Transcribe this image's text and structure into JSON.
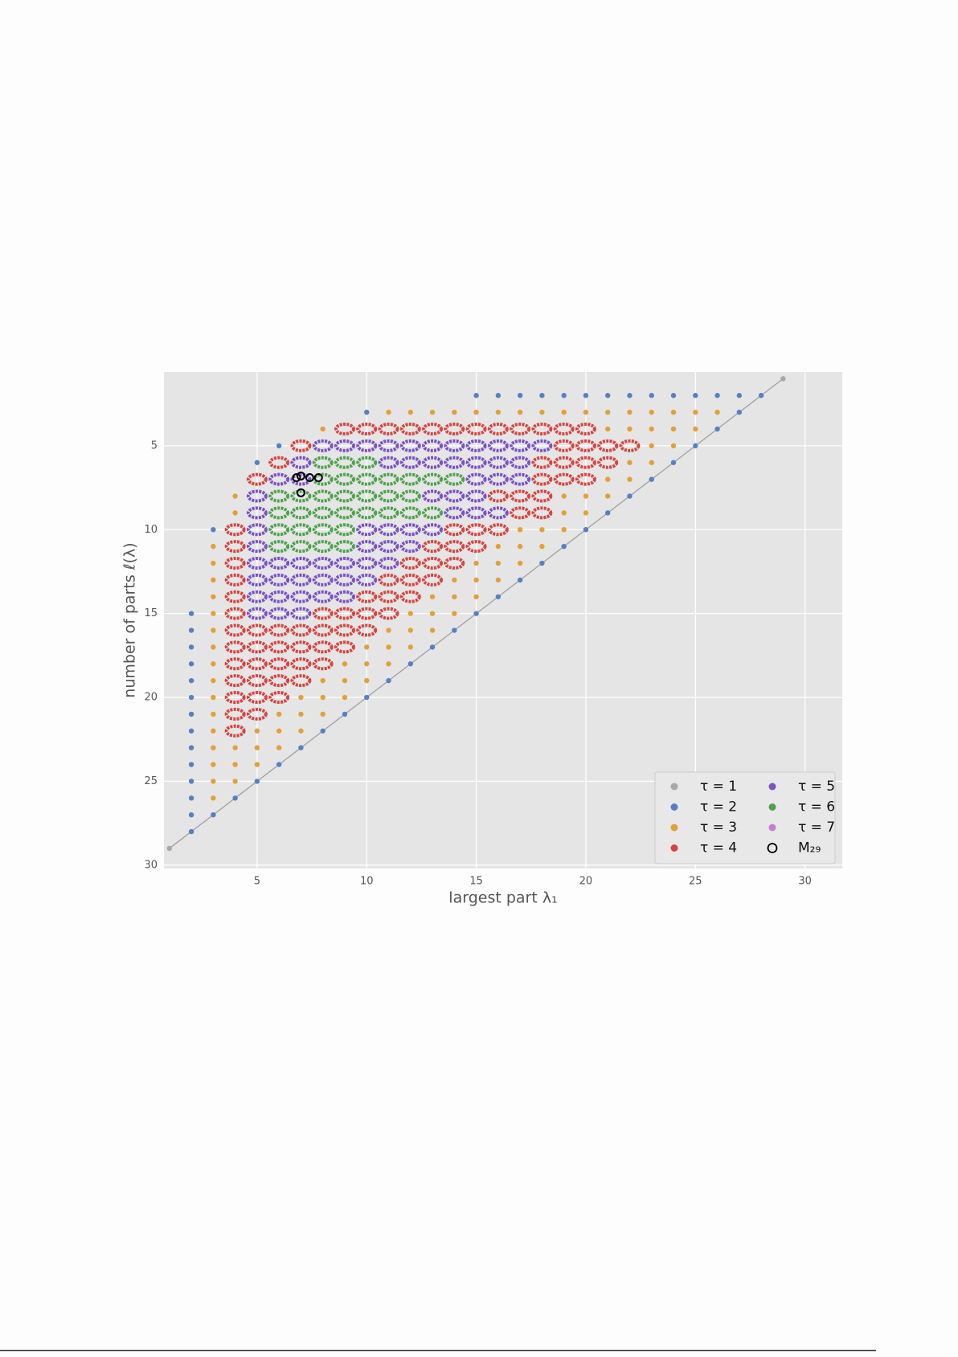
{
  "chart_data": {
    "type": "scatter",
    "xlabel": "largest part λ₁",
    "ylabel": "number of parts ℓ(λ)",
    "xlim": [
      0.75,
      31.7
    ],
    "ylim": [
      30.2,
      0.6
    ],
    "xticks": [
      5,
      10,
      15,
      20,
      25,
      30
    ],
    "yticks": [
      5,
      10,
      15,
      20,
      25,
      30
    ],
    "grid": true,
    "legend": "lower right",
    "series": [
      {
        "name": "τ = 1",
        "color": "#a8a8a8",
        "marker": "dot",
        "x": [
          29,
          1
        ],
        "y": [
          1,
          29
        ]
      },
      {
        "name": "τ = 2",
        "color": "#5580c4",
        "marker": "dot",
        "x": [
          15,
          16,
          17,
          18,
          19,
          20,
          21,
          22,
          23,
          24,
          25,
          26,
          27,
          28,
          10,
          27,
          26,
          6,
          25,
          5,
          24,
          23,
          22,
          21,
          3,
          20,
          19,
          18,
          17,
          16,
          2,
          15,
          2,
          14,
          2,
          13,
          2,
          12,
          2,
          11,
          2,
          10,
          2,
          9,
          2,
          8,
          2,
          7,
          2,
          6,
          2,
          5,
          2,
          4,
          2,
          3,
          2
        ],
        "y": [
          2,
          2,
          2,
          2,
          2,
          2,
          2,
          2,
          2,
          2,
          2,
          2,
          2,
          2,
          3,
          3,
          4,
          5,
          5,
          6,
          6,
          7,
          8,
          9,
          10,
          10,
          11,
          12,
          13,
          14,
          15,
          15,
          16,
          16,
          17,
          17,
          18,
          18,
          19,
          19,
          20,
          20,
          21,
          21,
          22,
          22,
          23,
          23,
          24,
          24,
          25,
          25,
          26,
          26,
          27,
          27,
          28
        ]
      },
      {
        "name": "τ = 3",
        "color": "#e3a035",
        "marker": "dot",
        "x": [
          11,
          12,
          13,
          14,
          15,
          16,
          17,
          18,
          19,
          20,
          21,
          22,
          23,
          24,
          25,
          26,
          8,
          21,
          22,
          23,
          24,
          25,
          23,
          24,
          22,
          23,
          21,
          22,
          4,
          19,
          20,
          21,
          4,
          19,
          20,
          17,
          18,
          19,
          3,
          16,
          17,
          18,
          3,
          15,
          16,
          17,
          3,
          14,
          15,
          16,
          3,
          13,
          14,
          15,
          3,
          12,
          13,
          14,
          3,
          11,
          12,
          13,
          3,
          10,
          11,
          12,
          3,
          9,
          10,
          11,
          3,
          8,
          9,
          10,
          3,
          7,
          8,
          9,
          3,
          6,
          7,
          8,
          3,
          5,
          6,
          7,
          3,
          4,
          5,
          6,
          3,
          4,
          5,
          3,
          4,
          3
        ],
        "y": [
          3,
          3,
          3,
          3,
          3,
          3,
          3,
          3,
          3,
          3,
          3,
          3,
          3,
          3,
          3,
          3,
          4,
          4,
          4,
          4,
          4,
          4,
          5,
          5,
          6,
          6,
          7,
          7,
          8,
          8,
          8,
          8,
          9,
          9,
          9,
          10,
          10,
          10,
          11,
          11,
          11,
          11,
          12,
          12,
          12,
          12,
          13,
          13,
          13,
          13,
          14,
          14,
          14,
          14,
          15,
          15,
          15,
          15,
          16,
          16,
          16,
          16,
          17,
          17,
          17,
          17,
          18,
          18,
          18,
          18,
          19,
          19,
          19,
          19,
          20,
          20,
          20,
          20,
          21,
          21,
          21,
          21,
          22,
          22,
          22,
          22,
          23,
          23,
          23,
          23,
          24,
          24,
          24,
          25,
          25,
          26
        ]
      },
      {
        "name": "τ = 4",
        "color": "#d64541",
        "marker": "ring",
        "x": [
          9,
          10,
          11,
          12,
          13,
          14,
          15,
          16,
          17,
          18,
          19,
          20,
          7,
          19,
          20,
          21,
          22,
          6,
          18,
          19,
          20,
          21,
          5,
          18,
          19,
          20,
          16,
          17,
          18,
          17,
          18,
          4,
          14,
          15,
          16,
          4,
          13,
          14,
          15,
          4,
          12,
          13,
          14,
          4,
          11,
          12,
          13,
          4,
          10,
          11,
          12,
          4,
          8,
          9,
          10,
          11,
          4,
          5,
          6,
          7,
          8,
          9,
          10,
          4,
          5,
          6,
          7,
          8,
          9,
          4,
          5,
          6,
          7,
          8,
          4,
          5,
          6,
          7,
          4,
          5,
          6,
          4,
          5,
          4
        ],
        "y": [
          4,
          4,
          4,
          4,
          4,
          4,
          4,
          4,
          4,
          4,
          4,
          4,
          5,
          5,
          5,
          5,
          5,
          6,
          6,
          6,
          6,
          6,
          7,
          7,
          7,
          7,
          8,
          8,
          8,
          9,
          9,
          10,
          10,
          10,
          10,
          11,
          11,
          11,
          11,
          12,
          12,
          12,
          12,
          13,
          13,
          13,
          13,
          14,
          14,
          14,
          14,
          15,
          15,
          15,
          15,
          15,
          16,
          16,
          16,
          16,
          16,
          16,
          16,
          17,
          17,
          17,
          17,
          17,
          17,
          18,
          18,
          18,
          18,
          18,
          19,
          19,
          19,
          19,
          20,
          20,
          20,
          21,
          21,
          22
        ]
      },
      {
        "name": "τ = 5",
        "color": "#7a52c4",
        "marker": "ring",
        "x": [
          8,
          9,
          10,
          11,
          12,
          13,
          14,
          15,
          16,
          17,
          18,
          7,
          11,
          12,
          13,
          14,
          15,
          16,
          17,
          6,
          7,
          15,
          16,
          17,
          5,
          13,
          14,
          15,
          5,
          14,
          15,
          16,
          5,
          10,
          11,
          12,
          13,
          5,
          10,
          11,
          12,
          5,
          6,
          7,
          8,
          9,
          10,
          11,
          5,
          6,
          7,
          8,
          9,
          10,
          5,
          6,
          7,
          8,
          9,
          5,
          6,
          7
        ],
        "y": [
          5,
          5,
          5,
          5,
          5,
          5,
          5,
          5,
          5,
          5,
          5,
          6,
          6,
          6,
          6,
          6,
          6,
          6,
          6,
          7,
          7,
          7,
          7,
          7,
          8,
          8,
          8,
          8,
          9,
          9,
          9,
          9,
          10,
          10,
          10,
          10,
          10,
          11,
          11,
          11,
          11,
          12,
          12,
          12,
          12,
          12,
          12,
          12,
          13,
          13,
          13,
          13,
          13,
          13,
          14,
          14,
          14,
          14,
          14,
          15,
          15,
          15
        ]
      },
      {
        "name": "τ = 6",
        "color": "#4ea24d",
        "marker": "ring",
        "x": [
          8,
          9,
          10,
          8,
          9,
          10,
          11,
          12,
          13,
          14,
          6,
          7,
          8,
          9,
          10,
          11,
          12,
          6,
          7,
          8,
          9,
          10,
          11,
          12,
          13,
          6,
          7,
          8,
          9,
          6,
          7,
          8,
          9
        ],
        "y": [
          6,
          6,
          6,
          7,
          7,
          7,
          7,
          7,
          7,
          7,
          8,
          8,
          8,
          8,
          8,
          8,
          8,
          9,
          9,
          9,
          9,
          9,
          9,
          9,
          9,
          10,
          10,
          10,
          10,
          11,
          11,
          11,
          11
        ]
      },
      {
        "name": "τ = 7",
        "color": "#c57fd0",
        "marker": "dot",
        "x": [],
        "y": []
      },
      {
        "name": "M₂₉",
        "color": "#000000",
        "marker": "open",
        "x": [
          6.8,
          7.0,
          7.4,
          7.8,
          7.0
        ],
        "y": [
          6.9,
          6.8,
          6.9,
          6.9,
          7.8
        ]
      }
    ]
  }
}
